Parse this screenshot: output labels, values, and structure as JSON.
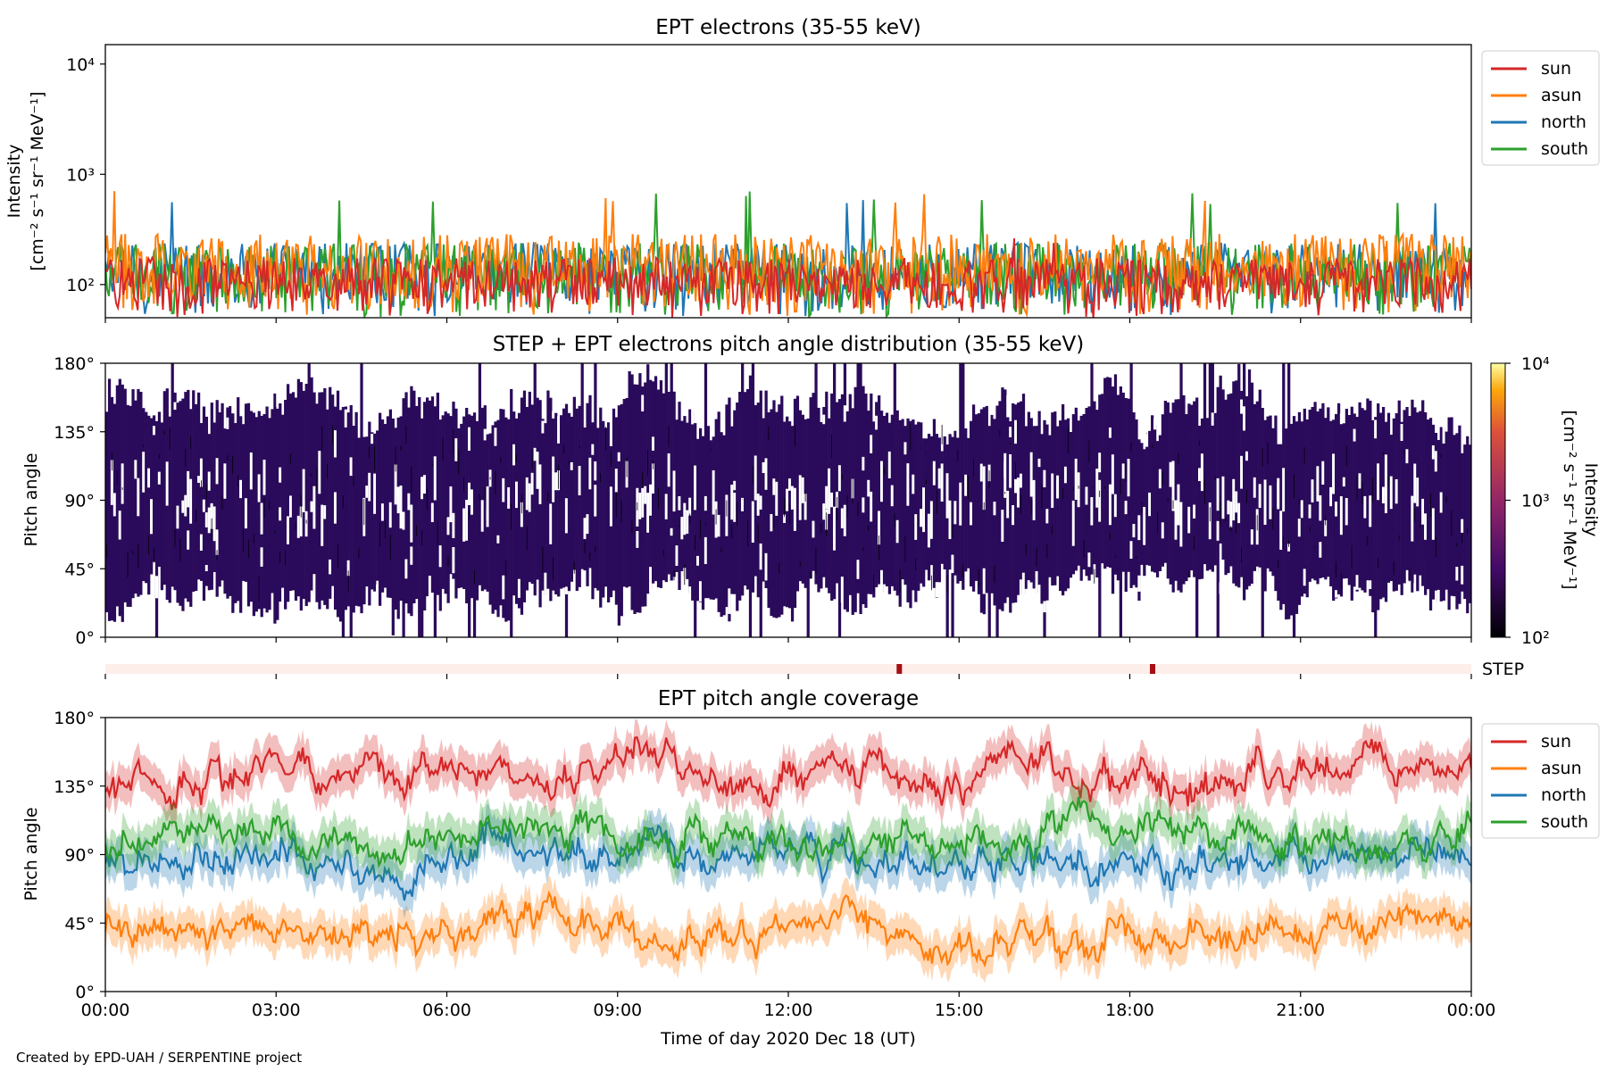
{
  "colors": {
    "sun": "#d62728",
    "asun": "#ff7f0e",
    "north": "#1f77b4",
    "south": "#2ca02c",
    "pad": "#2a0a5a",
    "step_bar": "#fdeee9",
    "step_mark": "#a50f15"
  },
  "footer": "Created by EPD-UAH / SERPENTINE project",
  "xaxis": {
    "label": "Time of day 2020 Dec 18 (UT)",
    "ticks": [
      "00:00",
      "03:00",
      "06:00",
      "09:00",
      "12:00",
      "15:00",
      "18:00",
      "21:00",
      "00:00"
    ],
    "range_hours": [
      0,
      24
    ]
  },
  "legend": [
    "sun",
    "asun",
    "north",
    "south"
  ],
  "chart_data": [
    {
      "type": "line",
      "title": "EPT electrons (35-55 keV)",
      "ylabel_line1": "Intensity",
      "ylabel_line2": "[cm⁻² s⁻¹ sr⁻¹ MeV⁻¹]",
      "yscale": "log",
      "ylim": [
        50,
        15000
      ],
      "yticks": [
        {
          "v": 100,
          "label": "10²"
        },
        {
          "v": 1000,
          "label": "10³"
        },
        {
          "v": 10000,
          "label": "10⁴"
        }
      ],
      "series": [
        {
          "name": "sun",
          "typical": 110,
          "peak": 300
        },
        {
          "name": "asun",
          "typical": 180,
          "peak": 720
        },
        {
          "name": "north",
          "typical": 150,
          "peak": 700
        },
        {
          "name": "south",
          "typical": 150,
          "peak": 700
        }
      ],
      "legend_position": "outside-top-right"
    },
    {
      "type": "heatmap",
      "title": "STEP + EPT electrons pitch angle distribution (35-55 keV)",
      "ylabel": "Pitch angle",
      "ylim": [
        0,
        180
      ],
      "yticks": [
        "0°",
        "45°",
        "90°",
        "135°",
        "180°"
      ],
      "colorbar": {
        "label_line1": "Intensity",
        "label_line2": "[cm⁻² s⁻¹ sr⁻¹ MeV⁻¹]",
        "scale": "log",
        "range": [
          100,
          10000
        ],
        "ticks": [
          "10²",
          "10³",
          "10⁴"
        ]
      }
    },
    {
      "type": "bar",
      "label": "STEP",
      "marks_hours": [
        13.95,
        18.4
      ]
    },
    {
      "type": "line",
      "title": "EPT pitch angle coverage",
      "ylabel": "Pitch angle",
      "ylim": [
        0,
        180
      ],
      "yticks": [
        "0°",
        "45°",
        "90°",
        "135°",
        "180°"
      ],
      "series": [
        {
          "name": "sun",
          "mean": 140,
          "spread": 25
        },
        {
          "name": "asun",
          "mean": 40,
          "spread": 22
        },
        {
          "name": "north",
          "mean": 90,
          "spread": 22
        },
        {
          "name": "south",
          "mean": 100,
          "spread": 22
        }
      ],
      "legend_position": "outside-top-right"
    }
  ]
}
